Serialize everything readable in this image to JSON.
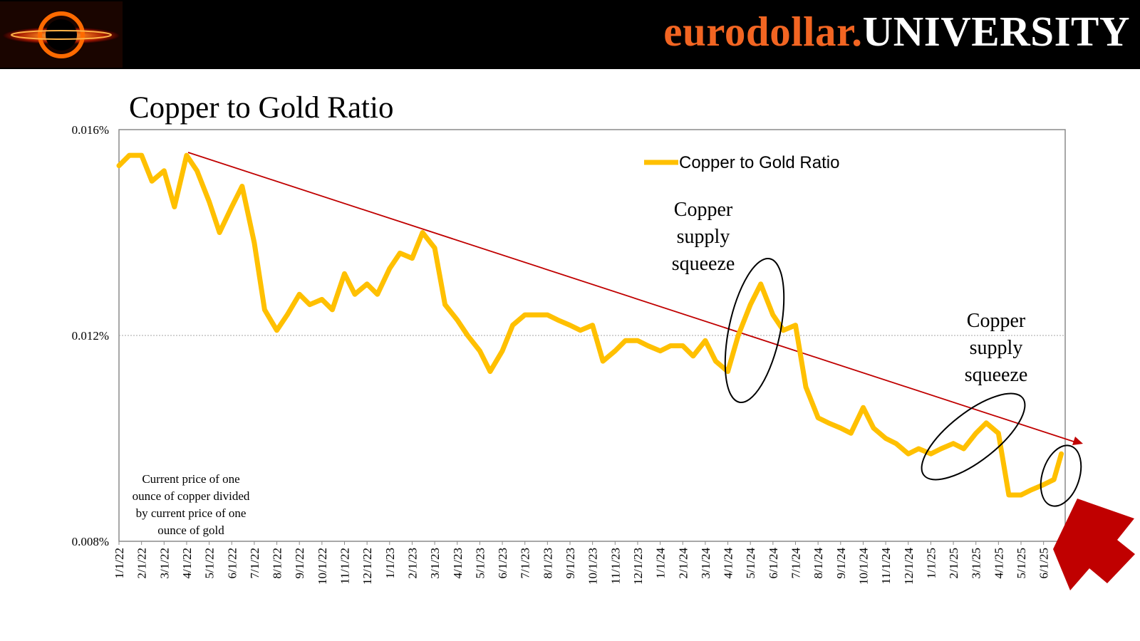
{
  "brand": {
    "part1": "eurodollar.",
    "part2": "UNIVERSITY"
  },
  "colors": {
    "series": "#FFC000",
    "trend": "#C00000",
    "arrow": "#C00000",
    "brand_accent": "#f26522",
    "header_bg": "#000000"
  },
  "chart_data": {
    "type": "line",
    "title": "Copper to Gold Ratio",
    "ylabel": "",
    "xlabel": "",
    "ylim": [
      0.008,
      0.016
    ],
    "y_ticks": [
      "0.016%",
      "0.012%",
      "0.008%"
    ],
    "x_ticks": [
      "1/1/22",
      "2/1/22",
      "3/1/22",
      "4/1/22",
      "5/1/22",
      "6/1/22",
      "7/1/22",
      "8/1/22",
      "9/1/22",
      "10/1/22",
      "11/1/22",
      "12/1/22",
      "1/1/23",
      "2/1/23",
      "3/1/23",
      "4/1/23",
      "5/1/23",
      "6/1/23",
      "7/1/23",
      "8/1/23",
      "9/1/23",
      "10/1/23",
      "11/1/23",
      "12/1/23",
      "1/1/24",
      "2/1/24",
      "3/1/24",
      "4/1/24",
      "5/1/24",
      "6/1/24",
      "7/1/24",
      "8/1/24",
      "9/1/24",
      "10/1/24",
      "11/1/24",
      "12/1/24",
      "1/1/25",
      "2/1/25",
      "3/1/25",
      "4/1/25",
      "5/1/25",
      "6/1/25"
    ],
    "grid": "horizontal gridline at 0.012%",
    "legend": {
      "label": "Copper to Gold Ratio",
      "position": "top-right"
    },
    "series": [
      {
        "name": "Copper to Gold Ratio",
        "x": [
          "1/1/22",
          "1/15/22",
          "2/1/22",
          "2/15/22",
          "3/1/22",
          "3/15/22",
          "4/1/22",
          "4/15/22",
          "5/1/22",
          "5/15/22",
          "6/1/22",
          "6/15/22",
          "7/1/22",
          "7/15/22",
          "8/1/22",
          "8/15/22",
          "9/1/22",
          "9/15/22",
          "10/1/22",
          "10/15/22",
          "11/1/22",
          "11/15/22",
          "12/1/22",
          "12/15/22",
          "1/1/23",
          "1/15/23",
          "2/1/23",
          "2/15/23",
          "3/1/23",
          "3/15/23",
          "4/1/23",
          "4/15/23",
          "5/1/23",
          "5/15/23",
          "6/1/23",
          "6/15/23",
          "7/1/23",
          "7/15/23",
          "8/1/23",
          "8/15/23",
          "9/1/23",
          "9/15/23",
          "10/1/23",
          "10/15/23",
          "11/1/23",
          "11/15/23",
          "12/1/23",
          "12/15/23",
          "1/1/24",
          "1/15/24",
          "2/1/24",
          "2/15/24",
          "3/1/24",
          "3/15/24",
          "4/1/24",
          "4/15/24",
          "5/1/24",
          "5/15/24",
          "6/1/24",
          "6/15/24",
          "7/1/24",
          "7/15/24",
          "8/1/24",
          "8/15/24",
          "9/1/24",
          "9/15/24",
          "10/1/24",
          "10/15/24",
          "11/1/24",
          "11/15/24",
          "12/1/24",
          "12/15/24",
          "1/1/25",
          "1/15/25",
          "2/1/25",
          "2/15/25",
          "3/1/25",
          "3/15/25",
          "4/1/25",
          "4/15/25",
          "5/1/25",
          "5/15/25",
          "6/1/25",
          "6/15/25",
          "6/25/25"
        ],
        "values": [
          0.0153,
          0.0155,
          0.0155,
          0.015,
          0.0152,
          0.0145,
          0.0155,
          0.0152,
          0.0146,
          0.014,
          0.0145,
          0.0149,
          0.0138,
          0.0125,
          0.0121,
          0.0124,
          0.0128,
          0.0126,
          0.0127,
          0.0125,
          0.0132,
          0.0128,
          0.013,
          0.0128,
          0.0133,
          0.0136,
          0.0135,
          0.014,
          0.0137,
          0.0126,
          0.0123,
          0.012,
          0.0117,
          0.0113,
          0.0117,
          0.0122,
          0.0124,
          0.0124,
          0.0124,
          0.0123,
          0.0122,
          0.0121,
          0.0122,
          0.0115,
          0.0117,
          0.0119,
          0.0119,
          0.0118,
          0.0117,
          0.0118,
          0.0118,
          0.0116,
          0.0119,
          0.0115,
          0.0113,
          0.012,
          0.0126,
          0.013,
          0.0124,
          0.0121,
          0.0122,
          0.011,
          0.0104,
          0.0103,
          0.0102,
          0.0101,
          0.0106,
          0.0102,
          0.01,
          0.0099,
          0.0097,
          0.0098,
          0.0097,
          0.0098,
          0.0099,
          0.0098,
          0.0101,
          0.0103,
          0.0101,
          0.0089,
          0.0089,
          0.009,
          0.0091,
          0.0092,
          0.0097
        ]
      }
    ],
    "annotations": [
      {
        "text": "Copper supply squeeze",
        "near": "5/1/24"
      },
      {
        "text": "Copper supply squeeze",
        "near": "2/15/25"
      },
      {
        "text": "Current price of one ounce of copper divided by current price of one ounce of gold",
        "near": "bottom-left"
      }
    ]
  },
  "annotation_text": {
    "squeeze1": [
      "Copper",
      "supply",
      "squeeze"
    ],
    "squeeze2": [
      "Copper",
      "supply",
      "squeeze"
    ],
    "note": [
      "Current price of one",
      "ounce of copper divided",
      "by current price of one",
      "ounce of gold"
    ]
  }
}
